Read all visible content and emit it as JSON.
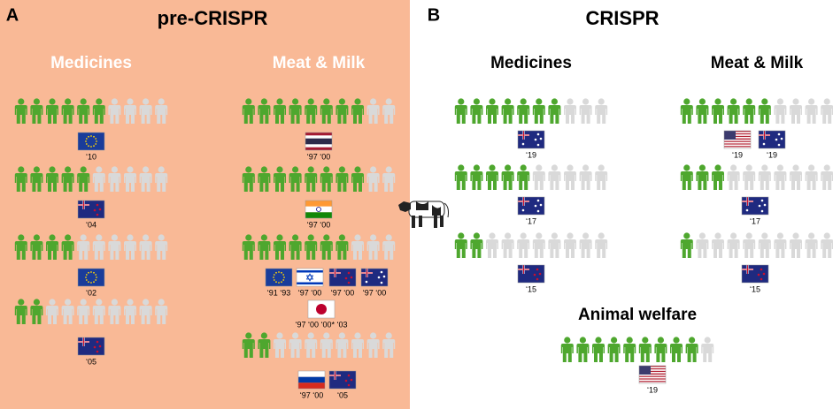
{
  "icons_per_row": 10,
  "panels": [
    {
      "letter": "A",
      "title": "pre-CRISPR",
      "sections": [
        {
          "heading": "Medicines",
          "rows": [
            {
              "green": 6,
              "years": [
                "‘10"
              ]
            },
            {
              "green": 5,
              "years": [
                "‘04"
              ]
            },
            {
              "green": 4,
              "years": [
                "‘02"
              ]
            },
            {
              "green": 2,
              "years": [
                "‘05"
              ]
            }
          ]
        },
        {
          "heading": "Meat & Milk",
          "rows": [
            {
              "green": 8,
              "years": [
                "‘97 ‘00"
              ]
            },
            {
              "green": 8,
              "years": [
                "‘97 ‘00"
              ]
            },
            {
              "green": 7,
              "years": [
                "‘91 ‘93",
                "‘97 ‘00",
                "‘97 ‘00",
                "‘97 ‘00",
                "‘97 ‘00 ‘00* ‘03"
              ]
            },
            {
              "green": 2,
              "years": [
                "‘97 ‘00",
                "‘05"
              ]
            }
          ]
        }
      ]
    },
    {
      "letter": "B",
      "title": "CRISPR",
      "sections": [
        {
          "heading": "Medicines",
          "rows": [
            {
              "green": 7,
              "years": [
                "‘19"
              ]
            },
            {
              "green": 5,
              "years": [
                "‘17"
              ]
            },
            {
              "green": 2,
              "years": [
                "‘15"
              ]
            }
          ]
        },
        {
          "heading": "Meat & Milk",
          "rows": [
            {
              "green": 6,
              "years": [
                "‘19",
                "‘19"
              ]
            },
            {
              "green": 3,
              "years": [
                "‘17"
              ]
            },
            {
              "green": 1,
              "years": [
                "‘15"
              ]
            }
          ]
        },
        {
          "heading": "Animal welfare",
          "rows": [
            {
              "green": 9,
              "years": [
                "‘19"
              ]
            }
          ]
        }
      ]
    }
  ]
}
